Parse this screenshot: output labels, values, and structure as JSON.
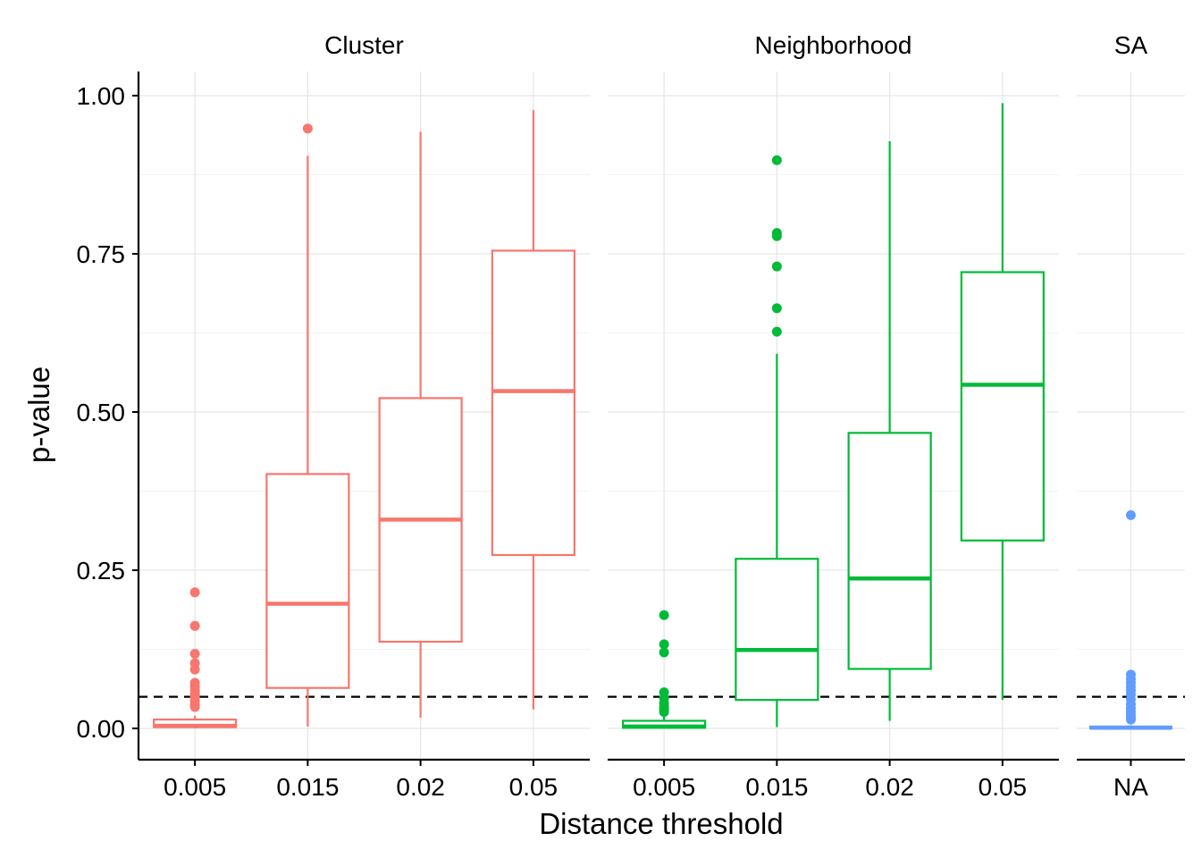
{
  "chart_data": {
    "type": "boxplot",
    "xlabel": "Distance threshold",
    "ylabel": "p-value",
    "ylim": [
      -0.05,
      1.04
    ],
    "y_ticks": [
      "0.00",
      "0.25",
      "0.50",
      "0.75",
      "1.00"
    ],
    "y_tick_values": [
      0,
      0.25,
      0.5,
      0.75,
      1.0
    ],
    "reference_line": {
      "y": 0.05,
      "style": "dashed"
    },
    "grid": true,
    "legend": "none",
    "panels": [
      {
        "name": "Cluster",
        "color": "#F8766D",
        "categories": [
          "0.005",
          "0.015",
          "0.02",
          "0.05"
        ],
        "boxes": [
          {
            "q1": 0.002,
            "median": 0.004,
            "q3": 0.014,
            "whisker_low": 0.0,
            "whisker_high": 0.02,
            "outliers": [
              0.215,
              0.162,
              0.118,
              0.103,
              0.093,
              0.072,
              0.066,
              0.06,
              0.055,
              0.05,
              0.044,
              0.038,
              0.034
            ]
          },
          {
            "q1": 0.064,
            "median": 0.197,
            "q3": 0.402,
            "whisker_low": 0.003,
            "whisker_high": 0.905,
            "outliers": [
              0.948
            ]
          },
          {
            "q1": 0.137,
            "median": 0.33,
            "q3": 0.522,
            "whisker_low": 0.017,
            "whisker_high": 0.943,
            "outliers": []
          },
          {
            "q1": 0.274,
            "median": 0.533,
            "q3": 0.755,
            "whisker_low": 0.03,
            "whisker_high": 0.977,
            "outliers": []
          }
        ]
      },
      {
        "name": "Neighborhood",
        "color": "#00BA38",
        "categories": [
          "0.005",
          "0.015",
          "0.02",
          "0.05"
        ],
        "boxes": [
          {
            "q1": 0.001,
            "median": 0.003,
            "q3": 0.012,
            "whisker_low": 0.0,
            "whisker_high": 0.02,
            "outliers": [
              0.179,
              0.133,
              0.12,
              0.057,
              0.048,
              0.04,
              0.034,
              0.03,
              0.026
            ]
          },
          {
            "q1": 0.045,
            "median": 0.124,
            "q3": 0.268,
            "whisker_low": 0.002,
            "whisker_high": 0.592,
            "outliers": [
              0.898,
              0.783,
              0.778,
              0.73,
              0.664,
              0.627
            ]
          },
          {
            "q1": 0.094,
            "median": 0.237,
            "q3": 0.467,
            "whisker_low": 0.012,
            "whisker_high": 0.928,
            "outliers": []
          },
          {
            "q1": 0.297,
            "median": 0.543,
            "q3": 0.721,
            "whisker_low": 0.045,
            "whisker_high": 0.988,
            "outliers": []
          }
        ]
      },
      {
        "name": "SA",
        "color": "#619CFF",
        "categories": [
          "NA"
        ],
        "boxes": [
          {
            "q1": 0.0,
            "median": 0.001,
            "q3": 0.003,
            "whisker_low": 0.0,
            "whisker_high": 0.005,
            "outliers": [
              0.337,
              0.085,
              0.078,
              0.072,
              0.066,
              0.06,
              0.054,
              0.046,
              0.038,
              0.032,
              0.027,
              0.022,
              0.018,
              0.014
            ]
          }
        ]
      }
    ]
  }
}
